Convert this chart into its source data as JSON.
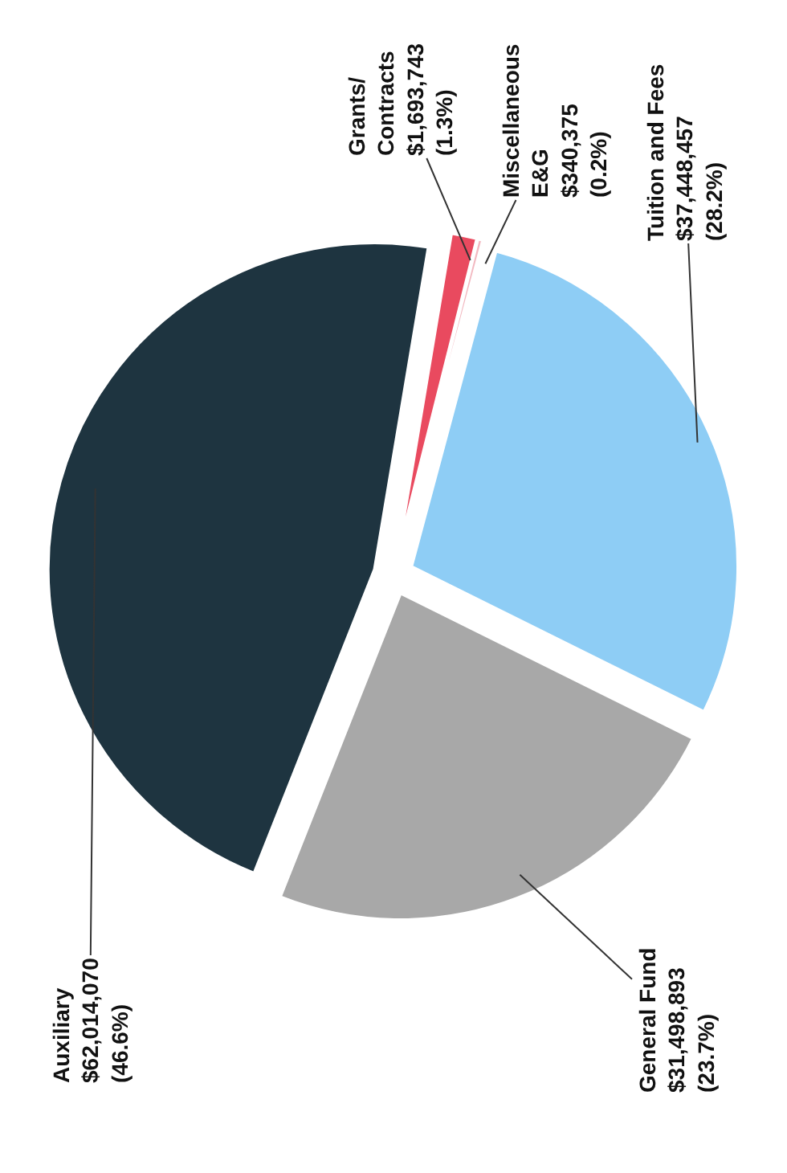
{
  "chart_data": {
    "type": "pie",
    "categories": [
      "Tuition and Fees",
      "General Fund",
      "Auxiliary",
      "Grants/\nContracts",
      "Miscellaneous\nE&G"
    ],
    "values": [
      37448457,
      31498893,
      62014070,
      1693743,
      340375
    ],
    "colors": [
      "#8ecdf5",
      "#a8a8a8",
      "#1e3440",
      "#e94a5f",
      "#f2b8c0"
    ],
    "value_labels": [
      "$37,448,457\n(28.2%)",
      "$31,498,893\n(23.7%)",
      "$62,014,070\n(46.6%)",
      "$1,693,743\n(1.3%)",
      "$340,375\n(0.2%)"
    ],
    "legend": false
  }
}
